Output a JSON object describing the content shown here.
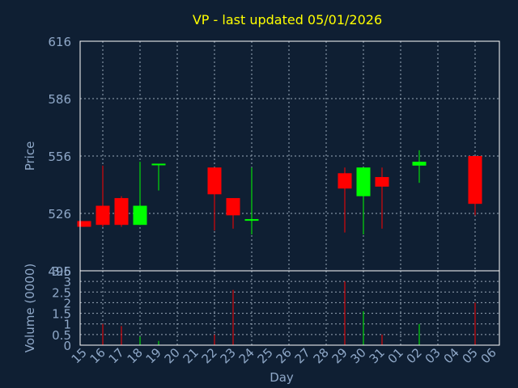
{
  "colors": {
    "background": "#0f1f33",
    "plot_border": "#ffffff",
    "grid": "#9aa8b8",
    "title": "#ffff00",
    "axis_text": "#8fa8c8",
    "up": "#00ff00",
    "down": "#ff0000"
  },
  "chart_data": {
    "type": "candlestick",
    "title": "VP - last updated 05/01/2026",
    "xlabel": "Day",
    "ylabel": "Price",
    "volume_ylabel": "Volume (0000)",
    "grid": true,
    "x_ticks": [
      "15",
      "16",
      "17",
      "18",
      "19",
      "20",
      "21",
      "22",
      "23",
      "24",
      "25",
      "26",
      "27",
      "28",
      "29",
      "30",
      "31",
      "01",
      "02",
      "03",
      "04",
      "05",
      "06"
    ],
    "price_ylim": [
      496,
      616
    ],
    "price_ticks": [
      496,
      526,
      556,
      586,
      616
    ],
    "volume_ylim": [
      0,
      3.5
    ],
    "volume_ticks": [
      0,
      0.5,
      1,
      1.5,
      2,
      2.5,
      3,
      3.5
    ],
    "candles": [
      {
        "day": "15",
        "open": 522,
        "high": 522,
        "low": 519,
        "close": 519,
        "volume": 0
      },
      {
        "day": "16",
        "open": 530,
        "high": 551,
        "low": 519,
        "close": 520,
        "volume": 1.0
      },
      {
        "day": "17",
        "open": 534,
        "high": 535,
        "low": 519,
        "close": 520,
        "volume": 0.9
      },
      {
        "day": "18",
        "open": 520,
        "high": 553,
        "low": 520,
        "close": 530,
        "volume": 0.4
      },
      {
        "day": "19",
        "open": 552,
        "high": 552,
        "low": 538,
        "close": 552,
        "volume": 0.2
      },
      {
        "day": "22",
        "open": 550,
        "high": 550,
        "low": 517,
        "close": 536,
        "volume": 0.5
      },
      {
        "day": "23",
        "open": 534,
        "high": 534,
        "low": 518,
        "close": 525,
        "volume": 2.6
      },
      {
        "day": "24",
        "open": 523,
        "high": 550,
        "low": 515,
        "close": 523,
        "volume": 0
      },
      {
        "day": "29",
        "open": 547,
        "high": 550,
        "low": 516,
        "close": 539,
        "volume": 3.0
      },
      {
        "day": "30",
        "open": 535,
        "high": 550,
        "low": 515,
        "close": 550,
        "volume": 1.6
      },
      {
        "day": "31",
        "open": 545,
        "high": 550,
        "low": 518,
        "close": 540,
        "volume": 0.5
      },
      {
        "day": "02",
        "open": 551,
        "high": 559,
        "low": 542,
        "close": 553,
        "volume": 1.0
      },
      {
        "day": "05",
        "open": 556,
        "high": 556,
        "low": 525,
        "close": 531,
        "volume": 2.0
      }
    ]
  }
}
